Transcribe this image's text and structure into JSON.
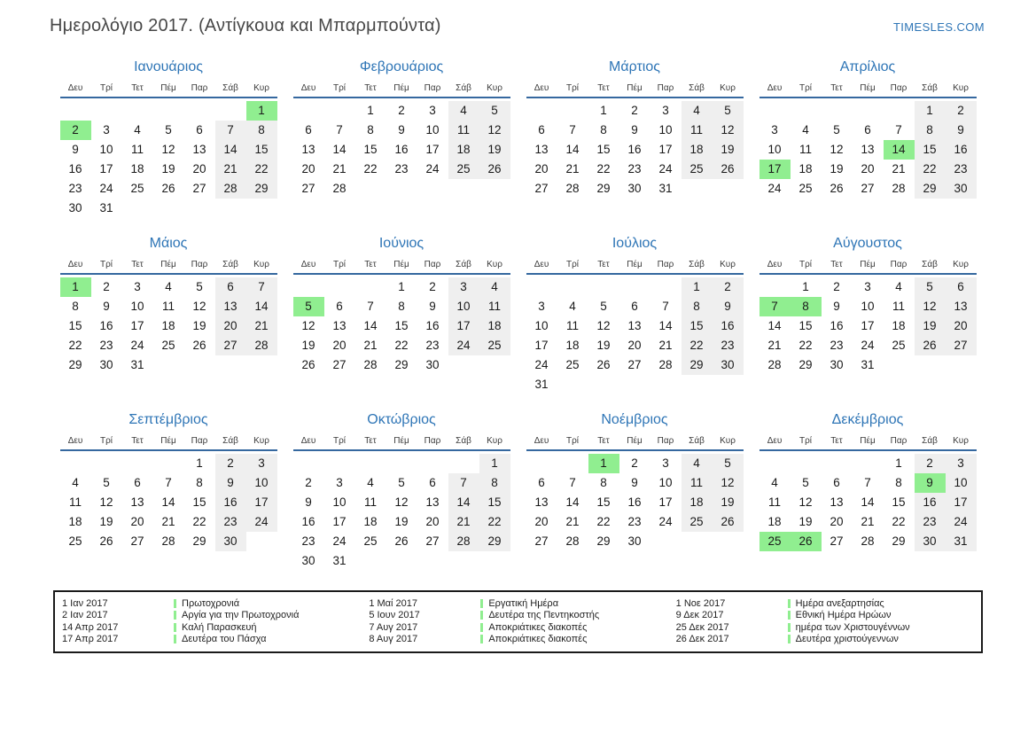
{
  "header": {
    "title": "Ημερολόγιο 2017. (Αντίγκουα και Μπαρμπούντα)",
    "site": "TIMESLES.COM"
  },
  "colors": {
    "accent_blue": "#2e75b6",
    "header_rule_blue": "#35689f",
    "holiday_green": "#90ee90",
    "weekend_gray": "#efefef"
  },
  "weekdays": [
    "Δευ",
    "Τρί",
    "Τετ",
    "Πέμ",
    "Παρ",
    "Σάβ",
    "Κυρ"
  ],
  "months": [
    {
      "name": "Ιανουάριος",
      "holidays": [
        1,
        2
      ],
      "weeks": [
        [
          null,
          null,
          null,
          null,
          null,
          null,
          1
        ],
        [
          2,
          3,
          4,
          5,
          6,
          7,
          8
        ],
        [
          9,
          10,
          11,
          12,
          13,
          14,
          15
        ],
        [
          16,
          17,
          18,
          19,
          20,
          21,
          22
        ],
        [
          23,
          24,
          25,
          26,
          27,
          28,
          29
        ],
        [
          30,
          31,
          null,
          null,
          null,
          null,
          null
        ]
      ]
    },
    {
      "name": "Φεβρουάριος",
      "holidays": [],
      "weeks": [
        [
          null,
          null,
          1,
          2,
          3,
          4,
          5
        ],
        [
          6,
          7,
          8,
          9,
          10,
          11,
          12
        ],
        [
          13,
          14,
          15,
          16,
          17,
          18,
          19
        ],
        [
          20,
          21,
          22,
          23,
          24,
          25,
          26
        ],
        [
          27,
          28,
          null,
          null,
          null,
          null,
          null
        ]
      ]
    },
    {
      "name": "Μάρτιος",
      "holidays": [],
      "weeks": [
        [
          null,
          null,
          1,
          2,
          3,
          4,
          5
        ],
        [
          6,
          7,
          8,
          9,
          10,
          11,
          12
        ],
        [
          13,
          14,
          15,
          16,
          17,
          18,
          19
        ],
        [
          20,
          21,
          22,
          23,
          24,
          25,
          26
        ],
        [
          27,
          28,
          29,
          30,
          31,
          null,
          null
        ]
      ]
    },
    {
      "name": "Απρίλιος",
      "holidays": [
        14,
        17
      ],
      "weeks": [
        [
          null,
          null,
          null,
          null,
          null,
          1,
          2
        ],
        [
          3,
          4,
          5,
          6,
          7,
          8,
          9
        ],
        [
          10,
          11,
          12,
          13,
          14,
          15,
          16
        ],
        [
          17,
          18,
          19,
          20,
          21,
          22,
          23
        ],
        [
          24,
          25,
          26,
          27,
          28,
          29,
          30
        ]
      ]
    },
    {
      "name": "Μάιος",
      "holidays": [
        1
      ],
      "weeks": [
        [
          1,
          2,
          3,
          4,
          5,
          6,
          7
        ],
        [
          8,
          9,
          10,
          11,
          12,
          13,
          14
        ],
        [
          15,
          16,
          17,
          18,
          19,
          20,
          21
        ],
        [
          22,
          23,
          24,
          25,
          26,
          27,
          28
        ],
        [
          29,
          30,
          31,
          null,
          null,
          null,
          null
        ]
      ]
    },
    {
      "name": "Ιούνιος",
      "holidays": [
        5
      ],
      "weeks": [
        [
          null,
          null,
          null,
          1,
          2,
          3,
          4
        ],
        [
          5,
          6,
          7,
          8,
          9,
          10,
          11
        ],
        [
          12,
          13,
          14,
          15,
          16,
          17,
          18
        ],
        [
          19,
          20,
          21,
          22,
          23,
          24,
          25
        ],
        [
          26,
          27,
          28,
          29,
          30,
          null,
          null
        ]
      ]
    },
    {
      "name": "Ιούλιος",
      "holidays": [],
      "weeks": [
        [
          null,
          null,
          null,
          null,
          null,
          1,
          2
        ],
        [
          3,
          4,
          5,
          6,
          7,
          8,
          9
        ],
        [
          10,
          11,
          12,
          13,
          14,
          15,
          16
        ],
        [
          17,
          18,
          19,
          20,
          21,
          22,
          23
        ],
        [
          24,
          25,
          26,
          27,
          28,
          29,
          30
        ],
        [
          31,
          null,
          null,
          null,
          null,
          null,
          null
        ]
      ]
    },
    {
      "name": "Αύγουστος",
      "holidays": [
        7,
        8
      ],
      "weeks": [
        [
          null,
          1,
          2,
          3,
          4,
          5,
          6
        ],
        [
          7,
          8,
          9,
          10,
          11,
          12,
          13
        ],
        [
          14,
          15,
          16,
          17,
          18,
          19,
          20
        ],
        [
          21,
          22,
          23,
          24,
          25,
          26,
          27
        ],
        [
          28,
          29,
          30,
          31,
          null,
          null,
          null
        ]
      ]
    },
    {
      "name": "Σεπτέμβριος",
      "holidays": [],
      "weeks": [
        [
          null,
          null,
          null,
          null,
          1,
          2,
          3
        ],
        [
          4,
          5,
          6,
          7,
          8,
          9,
          10
        ],
        [
          11,
          12,
          13,
          14,
          15,
          16,
          17
        ],
        [
          18,
          19,
          20,
          21,
          22,
          23,
          24
        ],
        [
          25,
          26,
          27,
          28,
          29,
          30,
          null
        ]
      ]
    },
    {
      "name": "Οκτώβριος",
      "holidays": [],
      "weeks": [
        [
          null,
          null,
          null,
          null,
          null,
          null,
          1
        ],
        [
          2,
          3,
          4,
          5,
          6,
          7,
          8
        ],
        [
          9,
          10,
          11,
          12,
          13,
          14,
          15
        ],
        [
          16,
          17,
          18,
          19,
          20,
          21,
          22
        ],
        [
          23,
          24,
          25,
          26,
          27,
          28,
          29
        ],
        [
          30,
          31,
          null,
          null,
          null,
          null,
          null
        ]
      ]
    },
    {
      "name": "Νοέμβριος",
      "holidays": [
        1
      ],
      "weeks": [
        [
          null,
          null,
          1,
          2,
          3,
          4,
          5
        ],
        [
          6,
          7,
          8,
          9,
          10,
          11,
          12
        ],
        [
          13,
          14,
          15,
          16,
          17,
          18,
          19
        ],
        [
          20,
          21,
          22,
          23,
          24,
          25,
          26
        ],
        [
          27,
          28,
          29,
          30,
          null,
          null,
          null
        ]
      ]
    },
    {
      "name": "Δεκέμβριος",
      "holidays": [
        9,
        25,
        26
      ],
      "weeks": [
        [
          null,
          null,
          null,
          null,
          1,
          2,
          3
        ],
        [
          4,
          5,
          6,
          7,
          8,
          9,
          10
        ],
        [
          11,
          12,
          13,
          14,
          15,
          16,
          17
        ],
        [
          18,
          19,
          20,
          21,
          22,
          23,
          24
        ],
        [
          25,
          26,
          27,
          28,
          29,
          30,
          31
        ]
      ]
    }
  ],
  "legend": {
    "columns": [
      [
        {
          "date": "1 Ιαν 2017",
          "name": "Πρωτοχρονιά"
        },
        {
          "date": "2 Ιαν 2017",
          "name": "Αργία για την Πρωτοχρονιά"
        },
        {
          "date": "14 Απρ 2017",
          "name": "Καλή Παρασκευή"
        },
        {
          "date": "17 Απρ 2017",
          "name": "Δευτέρα του Πάσχα"
        }
      ],
      [
        {
          "date": "1 Μαί 2017",
          "name": "Εργατική Ημέρα"
        },
        {
          "date": "5 Ιουν 2017",
          "name": "Δευτέρα της Πεντηκοστής"
        },
        {
          "date": "7 Αυγ 2017",
          "name": "Αποκριάτικες διακοπές"
        },
        {
          "date": "8 Αυγ 2017",
          "name": "Αποκριάτικες διακοπές"
        }
      ],
      [
        {
          "date": "1 Νοε 2017",
          "name": "Ημέρα ανεξαρτησίας"
        },
        {
          "date": "9 Δεκ 2017",
          "name": "Εθνική Ημέρα Ηρώων"
        },
        {
          "date": "25 Δεκ 2017",
          "name": "ημέρα των Χριστουγέννων"
        },
        {
          "date": "26 Δεκ 2017",
          "name": "Δευτέρα χριστούγεννων"
        }
      ]
    ]
  }
}
